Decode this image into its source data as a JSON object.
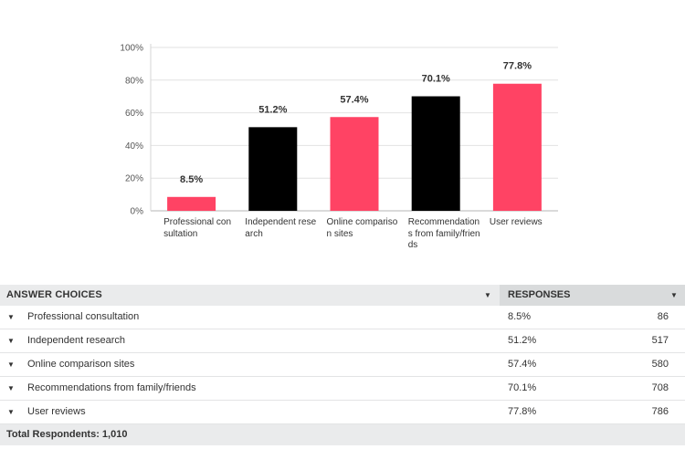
{
  "chart_data": {
    "type": "bar",
    "categories": [
      "Professional consultation",
      "Independent research",
      "Online comparison sites",
      "Recommendations from family/friends",
      "User reviews"
    ],
    "values": [
      8.5,
      51.2,
      57.4,
      70.1,
      77.8
    ],
    "value_labels": [
      "8.5%",
      "51.2%",
      "57.4%",
      "70.1%",
      "77.8%"
    ],
    "y_ticks": [
      "0%",
      "20%",
      "40%",
      "60%",
      "80%",
      "100%"
    ],
    "ylim": [
      0,
      100
    ],
    "grid": true,
    "colors": [
      "#ff4364",
      "#000000",
      "#ff4364",
      "#000000",
      "#ff4364"
    ],
    "title": "",
    "xlabel": "",
    "ylabel": ""
  },
  "table": {
    "header_choices": "ANSWER CHOICES",
    "header_responses": "RESPONSES",
    "rows": [
      {
        "choice": "Professional consultation",
        "percent": "8.5%",
        "count": "86"
      },
      {
        "choice": "Independent research",
        "percent": "51.2%",
        "count": "517"
      },
      {
        "choice": "Online comparison sites",
        "percent": "57.4%",
        "count": "580"
      },
      {
        "choice": "Recommendations from family/friends",
        "percent": "70.1%",
        "count": "708"
      },
      {
        "choice": "User reviews",
        "percent": "77.8%",
        "count": "786"
      }
    ],
    "total_label": "Total Respondents: 1,010"
  },
  "icons": {
    "header_sort": "chevron-down-icon",
    "row_expand": "chevron-down-icon"
  }
}
